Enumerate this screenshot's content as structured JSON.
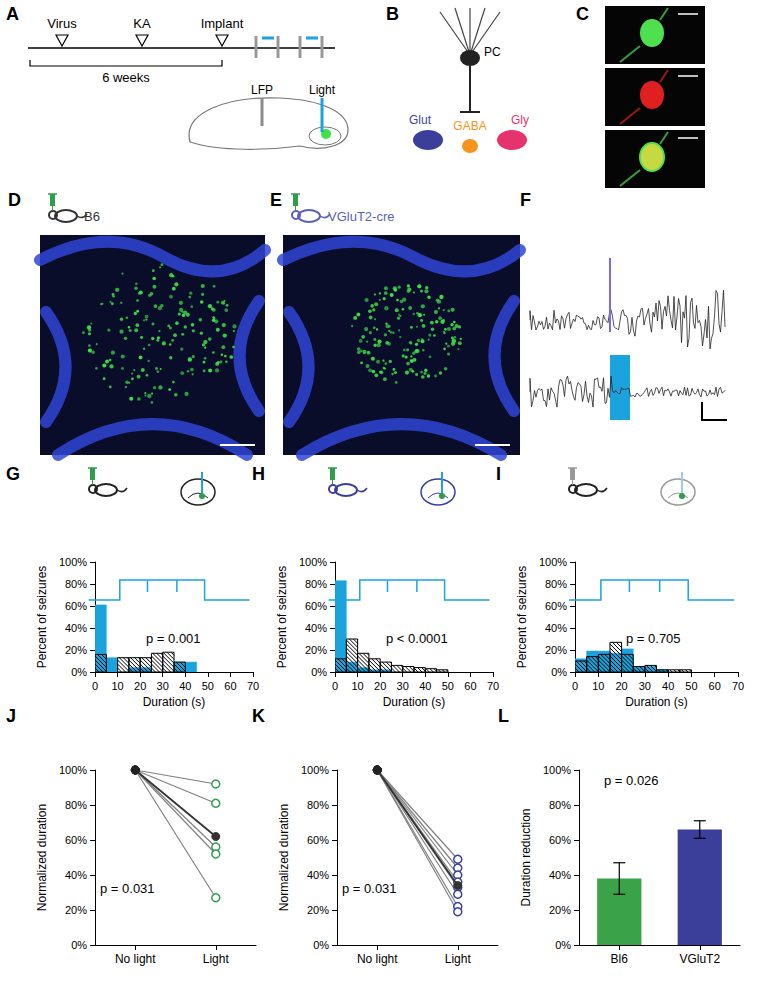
{
  "figure": [
    {
      "letter": "A",
      "timeline": [
        "Virus",
        "KA",
        "Implant"
      ],
      "span": "6 weeks",
      "probes": [
        {
          "label": "LFP",
          "color": "#8c8c8c"
        },
        {
          "label": "Light",
          "color": "#1aa3dc"
        }
      ]
    },
    {
      "letter": "B",
      "cell": "PC",
      "targets": [
        {
          "label": "Glut",
          "color": "#3c3f99"
        },
        {
          "label": "GABA",
          "color": "#f7941d"
        },
        {
          "label": "Gly",
          "color": "#e6336e"
        }
      ]
    },
    {
      "letter": "C"
    },
    {
      "letter": "D",
      "mouse": "B6",
      "color": "#333333"
    },
    {
      "letter": "E",
      "mouse": "VGluT2-cre",
      "color": "#5a5fb8"
    },
    {
      "letter": "F"
    }
  ],
  "chart_data": [
    {
      "panel": "G",
      "type": "histogram",
      "annotation": "p = 0.001",
      "xlabel": "Duration (s)",
      "ylabel": "Percent of seizures",
      "bins": [
        0,
        5,
        10,
        15,
        20,
        25,
        30,
        35,
        40,
        45,
        50,
        55,
        60,
        65,
        70
      ],
      "xlim": [
        0,
        70
      ],
      "xticks": [
        0,
        10,
        20,
        30,
        40,
        50,
        60,
        70
      ],
      "ylim": [
        0,
        100
      ],
      "yticks": [
        {
          "value": 0,
          "label": "0%"
        },
        {
          "value": 20,
          "label": "20%"
        },
        {
          "value": 40,
          "label": "40%"
        },
        {
          "value": 60,
          "label": "60%"
        },
        {
          "value": 80,
          "label": "80%"
        },
        {
          "value": 100,
          "label": "100%"
        }
      ],
      "series": [
        {
          "color": "#1aa3dc",
          "marker": "solid",
          "values": [
            61,
            13,
            0,
            4,
            4,
            0,
            0,
            9,
            9,
            0,
            0,
            0,
            0,
            0
          ]
        },
        {
          "color": "#000000",
          "marker": "hatch",
          "values": [
            16,
            0,
            13,
            13,
            13,
            17,
            18,
            9,
            0,
            0,
            0,
            0,
            0,
            0
          ]
        }
      ]
    },
    {
      "panel": "H",
      "type": "histogram",
      "annotation": "p < 0.0001",
      "xlabel": "Duration (s)",
      "ylabel": "Percent of seizures",
      "bins": [
        0,
        5,
        10,
        15,
        20,
        25,
        30,
        35,
        40,
        45,
        50,
        55,
        60,
        65,
        70
      ],
      "xlim": [
        0,
        70
      ],
      "xticks": [
        0,
        10,
        20,
        30,
        40,
        50,
        60,
        70
      ],
      "ylim": [
        0,
        100
      ],
      "yticks": [
        {
          "value": 0,
          "label": "0%"
        },
        {
          "value": 20,
          "label": "20%"
        },
        {
          "value": 40,
          "label": "40%"
        },
        {
          "value": 60,
          "label": "60%"
        },
        {
          "value": 80,
          "label": "80%"
        },
        {
          "value": 100,
          "label": "100%"
        }
      ],
      "series": [
        {
          "color": "#1aa3dc",
          "marker": "solid",
          "values": [
            83,
            9,
            4,
            2,
            2,
            0,
            0,
            0,
            0,
            0,
            0,
            0,
            0,
            0
          ]
        },
        {
          "color": "#000000",
          "marker": "hatch",
          "values": [
            12,
            30,
            17,
            12,
            9,
            6,
            5,
            4,
            3,
            2,
            0,
            0,
            0,
            0
          ]
        }
      ]
    },
    {
      "panel": "I",
      "type": "histogram",
      "annotation": "p = 0.705",
      "xlabel": "Duration (s)",
      "ylabel": "Percent of seizures",
      "bins": [
        0,
        5,
        10,
        15,
        20,
        25,
        30,
        35,
        40,
        45,
        50,
        55,
        60,
        65,
        70
      ],
      "xlim": [
        0,
        70
      ],
      "xticks": [
        0,
        10,
        20,
        30,
        40,
        50,
        60,
        70
      ],
      "ylim": [
        0,
        100
      ],
      "yticks": [
        {
          "value": 0,
          "label": "0%"
        },
        {
          "value": 20,
          "label": "20%"
        },
        {
          "value": 40,
          "label": "40%"
        },
        {
          "value": 60,
          "label": "60%"
        },
        {
          "value": 80,
          "label": "80%"
        },
        {
          "value": 100,
          "label": "100%"
        }
      ],
      "series": [
        {
          "color": "#1aa3dc",
          "marker": "solid",
          "values": [
            12,
            19,
            19,
            17,
            21,
            5,
            5,
            2,
            0,
            0,
            0,
            0,
            0,
            0
          ]
        },
        {
          "color": "#000000",
          "marker": "hatch",
          "values": [
            10,
            14,
            16,
            27,
            16,
            5,
            6,
            2,
            2,
            2,
            0,
            0,
            0,
            0
          ]
        }
      ]
    },
    {
      "panel": "J",
      "type": "line",
      "annotation": "p = 0.031",
      "ylabel": "Normalized duration",
      "categories": [
        "No light",
        "Light"
      ],
      "ylim": [
        0,
        100
      ],
      "yticks": [
        {
          "value": 0,
          "label": "0%"
        },
        {
          "value": 20,
          "label": "20%"
        },
        {
          "value": 40,
          "label": "40%"
        },
        {
          "value": 60,
          "label": "60%"
        },
        {
          "value": 80,
          "label": "80%"
        },
        {
          "value": 100,
          "label": "100%"
        }
      ],
      "series": [
        {
          "color": "#2e9e4a",
          "marker": "open",
          "values": [
            100,
            92
          ]
        },
        {
          "color": "#2e9e4a",
          "marker": "open",
          "values": [
            100,
            81
          ]
        },
        {
          "color": "#2e9e4a",
          "marker": "open",
          "values": [
            100,
            56
          ]
        },
        {
          "color": "#2e9e4a",
          "marker": "open",
          "values": [
            100,
            52
          ]
        },
        {
          "color": "#2e9e4a",
          "marker": "open",
          "values": [
            100,
            27
          ]
        },
        {
          "color": "#333333",
          "marker": "filled",
          "values": [
            100,
            62
          ]
        }
      ]
    },
    {
      "panel": "K",
      "type": "line",
      "annotation": "p = 0.031",
      "ylabel": "Normalized duration",
      "categories": [
        "No light",
        "Light"
      ],
      "ylim": [
        0,
        100
      ],
      "yticks": [
        {
          "value": 0,
          "label": "0%"
        },
        {
          "value": 20,
          "label": "20%"
        },
        {
          "value": 40,
          "label": "40%"
        },
        {
          "value": 60,
          "label": "60%"
        },
        {
          "value": 80,
          "label": "80%"
        },
        {
          "value": 100,
          "label": "100%"
        }
      ],
      "series": [
        {
          "color": "#3c3f99",
          "marker": "open",
          "values": [
            100,
            49
          ]
        },
        {
          "color": "#3c3f99",
          "marker": "open",
          "values": [
            100,
            44
          ]
        },
        {
          "color": "#3c3f99",
          "marker": "open",
          "values": [
            100,
            40
          ]
        },
        {
          "color": "#3c3f99",
          "marker": "open",
          "values": [
            100,
            36
          ]
        },
        {
          "color": "#3c3f99",
          "marker": "open",
          "values": [
            100,
            33
          ]
        },
        {
          "color": "#3c3f99",
          "marker": "open",
          "values": [
            100,
            29
          ]
        },
        {
          "color": "#3c3f99",
          "marker": "open",
          "values": [
            100,
            22
          ]
        },
        {
          "color": "#3c3f99",
          "marker": "open",
          "values": [
            100,
            19
          ]
        },
        {
          "color": "#333333",
          "marker": "filled",
          "values": [
            100,
            34
          ]
        }
      ]
    },
    {
      "panel": "L",
      "type": "bar",
      "annotation": "p = 0.026",
      "ylabel": "Duration reduction",
      "categories": [
        "Bl6",
        "VGluT2"
      ],
      "values": [
        38,
        66
      ],
      "errors": [
        9,
        5
      ],
      "colors": [
        "#3aa349",
        "#3c3f99"
      ],
      "ylim": [
        0,
        100
      ],
      "yticks": [
        {
          "value": 0,
          "label": "0%"
        },
        {
          "value": 20,
          "label": "20%"
        },
        {
          "value": 40,
          "label": "40%"
        },
        {
          "value": 60,
          "label": "60%"
        },
        {
          "value": 80,
          "label": "80%"
        },
        {
          "value": 100,
          "label": "100%"
        }
      ]
    }
  ]
}
